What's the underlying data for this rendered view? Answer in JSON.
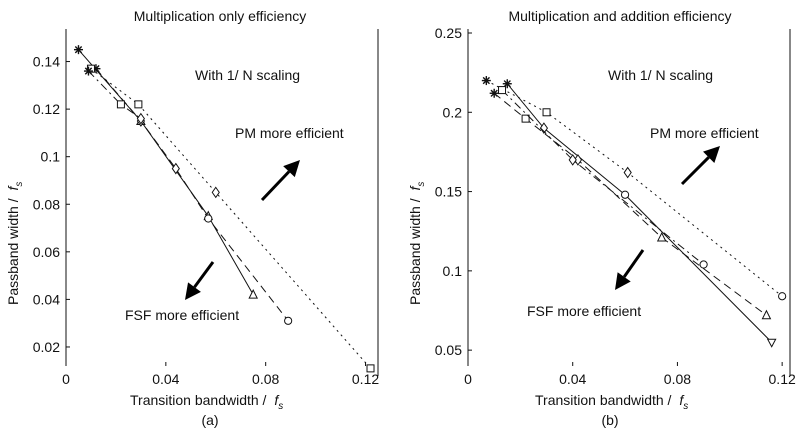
{
  "chart_data": [
    {
      "type": "line",
      "title": "Multiplication only efficiency",
      "xlabel": "Transition bandwidth / ",
      "xlabel_sub": "f",
      "xlabel_subscript": "s",
      "ylabel": "Passband width / ",
      "ylabel_sub": "f",
      "ylabel_subscript": "s",
      "caption": "(a)",
      "xlim": [
        0,
        0.125
      ],
      "ylim": [
        0.012,
        0.152
      ],
      "xticks": [
        0,
        0.04,
        0.08,
        0.12
      ],
      "xtick_labels": [
        "0",
        "0.04",
        "0.08",
        "0.12"
      ],
      "yticks": [
        0.02,
        0.04,
        0.06,
        0.08,
        0.1,
        0.12,
        0.14
      ],
      "ytick_labels": [
        "0.02",
        "0.04",
        "0.06",
        "0.08",
        "0.1",
        "0.12",
        "0.14"
      ],
      "grid": false,
      "series": [
        {
          "style": "solid",
          "marker": "triangle",
          "points": [
            [
              0.005,
              0.145
            ],
            [
              0.03,
              0.115
            ],
            [
              0.057,
              0.075
            ],
            [
              0.075,
              0.042
            ]
          ],
          "start_marker": "star"
        },
        {
          "style": "dashed",
          "marker": "circle",
          "points": [
            [
              0.012,
              0.137
            ],
            [
              0.03,
              0.115
            ],
            [
              0.044,
              0.095
            ],
            [
              0.057,
              0.074
            ],
            [
              0.089,
              0.031
            ]
          ],
          "start_marker": "star",
          "series_markers": [
            "star",
            "diamond",
            "diamond",
            "circle",
            "circle"
          ]
        },
        {
          "style": "dotted",
          "marker": "square",
          "points": [
            [
              0.01,
              0.137
            ],
            [
              0.029,
              0.122
            ],
            [
              0.06,
              0.085
            ],
            [
              0.122,
              0.011
            ]
          ],
          "series_markers": [
            "square",
            "square",
            "diamond",
            "square"
          ]
        },
        {
          "style": "dashdot",
          "marker": "square",
          "points": [
            [
              0.009,
              0.136
            ],
            [
              0.022,
              0.122
            ],
            [
              0.03,
              0.116
            ]
          ],
          "series_markers": [
            "star",
            "square",
            "diamond"
          ]
        }
      ],
      "annotations": {
        "scaling": "With 1/ N scaling",
        "pm": "PM more efficient",
        "fsf": "FSF more efficient"
      }
    },
    {
      "type": "line",
      "title": "Multiplication and addition efficiency",
      "xlabel": "Transition bandwidth / ",
      "xlabel_sub": "f",
      "xlabel_subscript": "s",
      "ylabel": "Passband width / ",
      "ylabel_sub": "f",
      "ylabel_subscript": "s",
      "caption": "(b)",
      "xlim": [
        0,
        0.123
      ],
      "ylim": [
        0.04,
        0.25
      ],
      "xticks": [
        0,
        0.04,
        0.08,
        0.12
      ],
      "xtick_labels": [
        "0",
        "0.04",
        "0.08",
        "0.12"
      ],
      "yticks": [
        0.05,
        0.1,
        0.15,
        0.2,
        0.25
      ],
      "ytick_labels": [
        "0.05",
        "0.1",
        "0.15",
        "0.2",
        "0.25"
      ],
      "grid": false,
      "series": [
        {
          "style": "solid",
          "marker": "pentagon",
          "points": [
            [
              0.015,
              0.218
            ],
            [
              0.029,
              0.19
            ],
            [
              0.06,
              0.148
            ],
            [
              0.116,
              0.055
            ]
          ],
          "series_markers": [
            "star",
            "diamond",
            "circle",
            "pentagon"
          ]
        },
        {
          "style": "dashed",
          "marker": "triangle",
          "points": [
            [
              0.01,
              0.212
            ],
            [
              0.022,
              0.196
            ],
            [
              0.042,
              0.17
            ],
            [
              0.074,
              0.121
            ],
            [
              0.114,
              0.072
            ]
          ],
          "series_markers": [
            "star",
            "square",
            "diamond",
            "triangle",
            "triangle"
          ]
        },
        {
          "style": "dotted",
          "marker": "circle",
          "points": [
            [
              0.007,
              0.22
            ],
            [
              0.03,
              0.2
            ],
            [
              0.061,
              0.162
            ],
            [
              0.12,
              0.084
            ]
          ],
          "series_markers": [
            "star",
            "square",
            "diamond",
            "circle"
          ]
        },
        {
          "style": "dashdot",
          "marker": "circle",
          "points": [
            [
              0.013,
              0.214
            ],
            [
              0.04,
              0.17
            ],
            [
              0.09,
              0.104
            ]
          ],
          "series_markers": [
            "square",
            "diamond",
            "circle"
          ]
        }
      ],
      "annotations": {
        "scaling": "With 1/ N scaling",
        "pm": "PM more efficient",
        "fsf": "FSF more efficient"
      }
    }
  ]
}
